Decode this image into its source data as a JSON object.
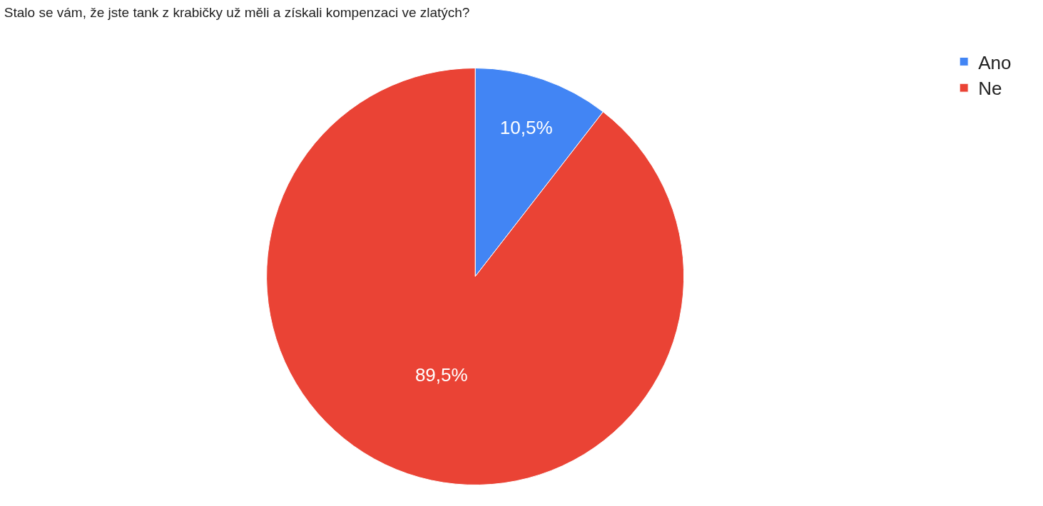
{
  "chart_data": {
    "type": "pie",
    "title": "Stalo se vám, že jste tank z krabičky už měli a získali kompenzaci ve zlatých?",
    "categories": [
      "Ano",
      "Ne"
    ],
    "values": [
      10.5,
      89.5
    ],
    "value_labels": [
      "10,5%",
      "89,5%"
    ],
    "colors": [
      "#4285f4",
      "#ea4335"
    ],
    "legend": "top right"
  }
}
